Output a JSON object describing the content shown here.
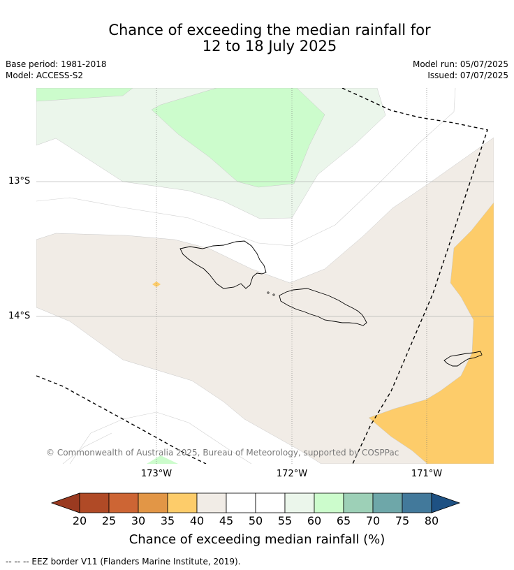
{
  "title_line1": "Chance of exceeding the median rainfall for",
  "title_line2": "12 to 18 July 2025",
  "base_period": "Base period: 1981-2018",
  "model": "Model: ACCESS-S2",
  "model_run": "Model run: 05/07/2025",
  "issued": "Issued: 07/07/2025",
  "copyright": "© Commonwealth of Australia 2025, Bureau of Meteorology, supported by COSPPac",
  "lat_labels": [
    "13°S",
    "14°S"
  ],
  "lon_labels": [
    "173°W",
    "172°W",
    "171°W"
  ],
  "colorbar": {
    "ticks": [
      "20",
      "25",
      "30",
      "35",
      "40",
      "45",
      "50",
      "55",
      "60",
      "65",
      "70",
      "75",
      "80"
    ],
    "label": "Chance of exceeding median rainfall (%)",
    "colors": [
      "#b04a26",
      "#cd6534",
      "#e29646",
      "#fdcc6a",
      "#f1ece6",
      "#ffffff",
      "#ffffff",
      "#ebf6eb",
      "#ccfccc",
      "#9dd0b7",
      "#6ea7a9",
      "#42799b"
    ],
    "under_color": "#9a3a20",
    "over_color": "#1e5183"
  },
  "colors": {
    "light_green": "#ebf6eb",
    "green": "#ccfccc",
    "beige": "#f1ece6",
    "orange": "#fdcc6a"
  },
  "footnote": "-- -- -- EEZ border V11 (Flanders Marine Institute, 2019)."
}
